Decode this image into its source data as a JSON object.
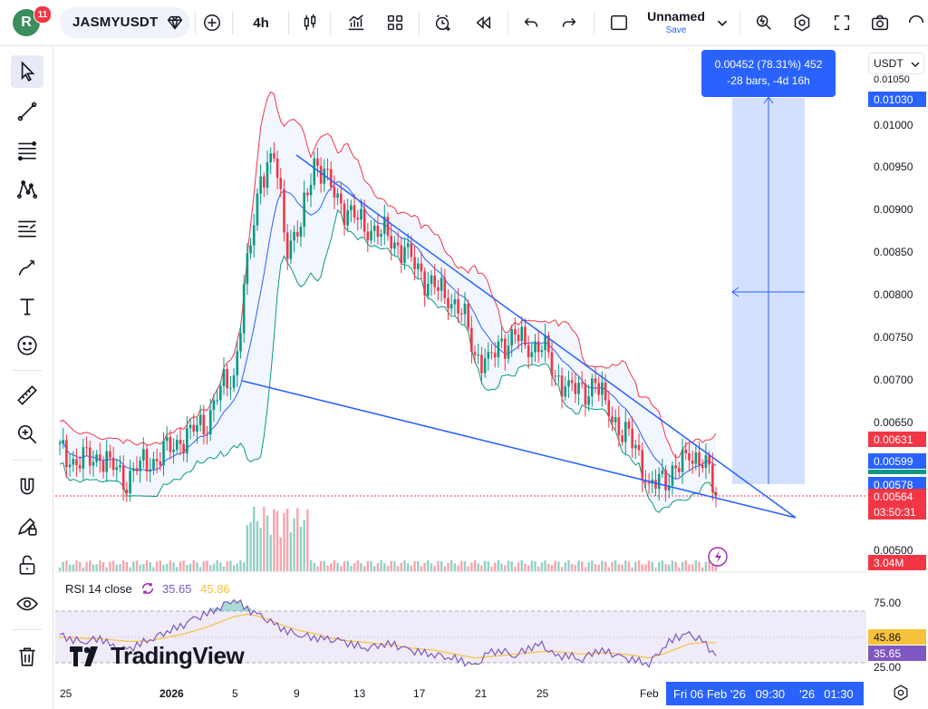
{
  "header": {
    "avatar_letter": "R",
    "notification_count": "11",
    "symbol": "JASMYUSDT",
    "interval": "4h",
    "layout_name": "Unnamed",
    "layout_save": "Save",
    "icons": [
      "diamond-icon",
      "add-symbol-icon",
      "candles-icon",
      "indicators-icon",
      "templates-icon",
      "alert-icon",
      "replay-icon",
      "undo-icon",
      "redo-icon",
      "layout-icon",
      "chevron-down-icon",
      "quick-search-icon",
      "settings-icon",
      "fullscreen-icon",
      "snapshot-icon"
    ]
  },
  "left_toolbar": {
    "tools": [
      "cursor-tool",
      "trend-line-tool",
      "fib-tool",
      "pattern-tool",
      "projection-tool",
      "brush-tool",
      "text-tool",
      "emoji-tool",
      "ruler-tool",
      "zoom-tool",
      "magnet-tool",
      "lock-draw-tool",
      "lock-tool",
      "eye-tool",
      "trash-tool"
    ]
  },
  "price_axis": {
    "currency": "USDT",
    "labels": [
      "0.01050",
      "0.01000",
      "0.00950",
      "0.00900",
      "0.00850",
      "0.00800",
      "0.00750",
      "0.00700",
      "0.00650",
      "0.00500"
    ],
    "tags": [
      {
        "name": "measure-top-price",
        "text": "0.01030",
        "color": "#2962ff"
      },
      {
        "name": "bb-upper-price",
        "text": "0.00631",
        "color": "#f23645"
      },
      {
        "name": "bb-basis-price",
        "text": "0.00599",
        "color": "#2962ff"
      },
      {
        "name": "measure-base-price",
        "text": "0.00578",
        "color": "#2962ff"
      },
      {
        "name": "last-price",
        "text": "0.00564",
        "color": "#f23645"
      },
      {
        "name": "countdown",
        "text": "03:50:31",
        "color": "#f23645"
      },
      {
        "name": "volume-value",
        "text": "3.04M",
        "color": "#f23645"
      }
    ]
  },
  "measure": {
    "line1": "0.00452 (78.31%) 452",
    "line2": "-28 bars, -4d 16h"
  },
  "rsi": {
    "label": "RSI 14 close",
    "value": "35.65",
    "ma": "45.86",
    "axis": [
      "75.00",
      "25.00"
    ],
    "tags": [
      {
        "name": "rsi-ma-tag",
        "text": "45.86",
        "color": "#f7c23b",
        "textColor": "#131722"
      },
      {
        "name": "rsi-value-tag",
        "text": "35.65",
        "color": "#7e57c2",
        "textColor": "#ffffff"
      }
    ]
  },
  "time_axis": {
    "labels": [
      "25",
      "2026",
      "5",
      "9",
      "13",
      "17",
      "21",
      "25",
      "Feb"
    ],
    "highlight": "Fri 06 Feb '26   09:30",
    "after": [
      "'26",
      "01:30"
    ]
  },
  "watermark": "TradingView",
  "chart_data": {
    "type": "candlestick",
    "symbol": "JASMYUSDT",
    "interval": "4h",
    "last_price": 0.00564,
    "bollinger": {
      "upper": 0.00631,
      "basis": 0.00599
    },
    "measure_range": {
      "from": 0.00578,
      "to": 0.0103,
      "change": 0.00452,
      "percent": 78.31,
      "bars": -28,
      "duration": "-4d 16h"
    },
    "close_series": [
      0.00618,
      0.00605,
      0.00602,
      0.00612,
      0.00596,
      0.00586,
      0.006,
      0.00606,
      0.00614,
      0.00629,
      0.0064,
      0.00655,
      0.0069,
      0.00705,
      0.0083,
      0.0094,
      0.0096,
      0.0086,
      0.0088,
      0.0096,
      0.0093,
      0.00905,
      0.0089,
      0.0088,
      0.00875,
      0.00862,
      0.00845,
      0.00822,
      0.00808,
      0.00798,
      0.00784,
      0.0073,
      0.0072,
      0.0074,
      0.00752,
      0.00738,
      0.00745,
      0.00705,
      0.0069,
      0.00684,
      0.00695,
      0.00665,
      0.0064,
      0.00625,
      0.00572,
      0.0058,
      0.00595,
      0.0061,
      0.00612,
      0.00564
    ],
    "rsi_series": [
      52,
      48,
      47,
      50,
      42,
      40,
      45,
      50,
      55,
      58,
      64,
      68,
      74,
      80,
      72,
      66,
      60,
      55,
      52,
      50,
      48,
      47,
      44,
      42,
      45,
      44,
      40,
      38,
      37,
      35,
      32,
      27,
      38,
      40,
      36,
      42,
      44,
      35,
      36,
      33,
      40,
      38,
      34,
      32,
      30,
      42,
      50,
      52,
      47,
      35.65
    ],
    "rsi_ma_series": [
      50,
      50,
      49,
      49,
      48,
      47,
      47,
      48,
      50,
      52,
      55,
      58,
      62,
      66,
      68,
      66,
      62,
      58,
      55,
      53,
      50,
      48,
      47,
      46,
      45,
      44,
      42,
      41,
      40,
      38,
      36,
      34,
      35,
      36,
      37,
      38,
      39,
      39,
      38,
      37,
      38,
      38,
      37,
      36,
      34,
      37,
      41,
      45,
      46,
      45.86
    ]
  }
}
